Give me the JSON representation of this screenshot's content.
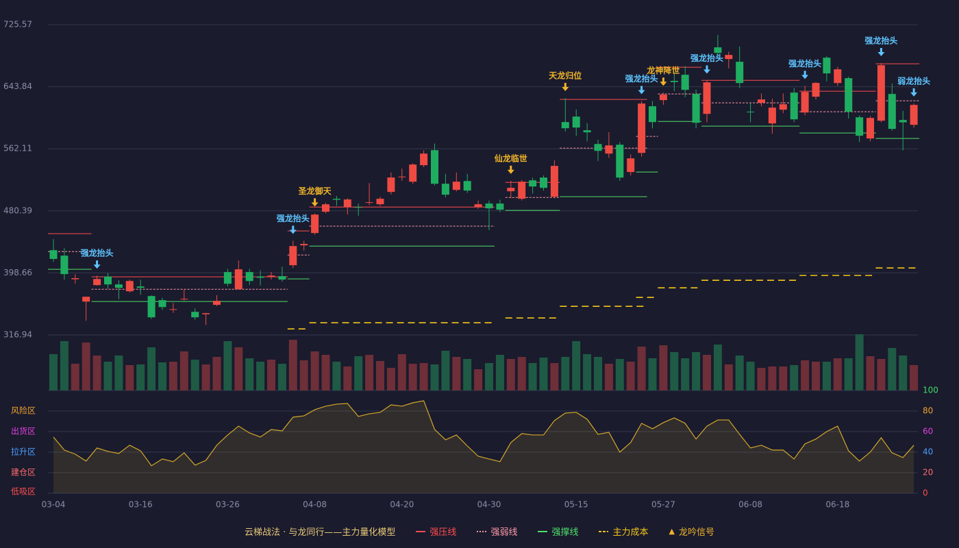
{
  "chart_data": {
    "type": "candlestick",
    "categories": [
      "03-04",
      null,
      null,
      null,
      null,
      null,
      null,
      null,
      "03-16",
      null,
      null,
      null,
      null,
      null,
      null,
      null,
      "03-26",
      null,
      null,
      null,
      null,
      null,
      null,
      null,
      "04-08",
      null,
      null,
      null,
      null,
      null,
      null,
      null,
      "04-20",
      null,
      null,
      null,
      null,
      null,
      null,
      null,
      "04-30",
      null,
      null,
      null,
      null,
      null,
      null,
      null,
      "05-15",
      null,
      null,
      null,
      null,
      null,
      null,
      null,
      "05-27",
      null,
      null,
      null,
      null,
      null,
      null,
      null,
      "06-08",
      null,
      null,
      null,
      null,
      null,
      null,
      null,
      "06-18",
      null,
      null,
      null,
      null,
      null,
      null,
      null
    ],
    "open": [
      428.6,
      421.4,
      390.3,
      360.9,
      382.6,
      393.9,
      383.5,
      374.5,
      380.8,
      368.2,
      362.8,
      350,
      363.7,
      347.4,
      344.2,
      356.6,
      399.8,
      377.2,
      399.8,
      393.9,
      393.3,
      394.4,
      408.8,
      435,
      451.2,
      479.2,
      496.3,
      485.4,
      485.4,
      491,
      489.1,
      505.3,
      525,
      518.8,
      540.5,
      560.3,
      516.1,
      508,
      519.7,
      485.4,
      490,
      490,
      506.2,
      496.3,
      520.6,
      524.2,
      499,
      597.3,
      604.5,
      586.5,
      568.4,
      555.8,
      567.5,
      531.5,
      556.7,
      618.1,
      626.2,
      651.6,
      659.6,
      634.3,
      608.1,
      695.7,
      680.3,
      676.7,
      611,
      622.6,
      595.5,
      613.6,
      636.1,
      609.9,
      630.7,
      682.1,
      648.7,
      655.1,
      603.6,
      575.7,
      599.1,
      634.3,
      600,
      593.7
    ],
    "high": [
      443.1,
      431.3,
      397,
      367.3,
      395.2,
      398.4,
      389,
      390,
      389.8,
      369,
      366,
      359,
      377,
      352,
      346,
      369.4,
      404,
      415,
      404,
      402,
      400,
      407,
      441,
      441,
      477,
      491,
      500,
      497,
      490,
      517,
      499,
      531,
      536,
      543,
      560,
      569,
      529,
      531,
      529,
      494,
      494,
      495,
      520,
      521,
      524,
      527,
      547,
      629,
      614,
      596,
      574,
      584,
      571,
      555,
      625,
      625,
      636,
      662,
      671,
      640,
      652,
      712,
      690,
      697,
      622,
      635,
      628,
      635,
      642,
      645,
      650,
      684,
      670,
      657,
      606,
      605,
      675,
      648,
      612,
      622
    ],
    "low": [
      413.3,
      389.8,
      384.4,
      335.7,
      382,
      378,
      364,
      373,
      370,
      338,
      350,
      346,
      362,
      337,
      330,
      355,
      381,
      377,
      383,
      382,
      390,
      387,
      405,
      428,
      449,
      477,
      487,
      475.5,
      474,
      488,
      487,
      502,
      520,
      516,
      538,
      514,
      498,
      506,
      504,
      483,
      455,
      479,
      497,
      494,
      503,
      507,
      497,
      585,
      579,
      572,
      546,
      550,
      520,
      527,
      552,
      589,
      620,
      638,
      630,
      589,
      597,
      683,
      668,
      642,
      597,
      618,
      582,
      609,
      597,
      606,
      627,
      651,
      645,
      602,
      571,
      572,
      597,
      586,
      560,
      590
    ],
    "close": [
      417.1,
      397.1,
      391.7,
      367.3,
      390.7,
      383.5,
      379,
      388,
      379,
      340.2,
      353.7,
      350.9,
      364.6,
      340.2,
      345.6,
      361.9,
      384.4,
      403.4,
      388,
      392.3,
      395.2,
      389.9,
      434,
      436.8,
      475.5,
      489,
      495,
      495.4,
      485,
      491.8,
      496.3,
      524.3,
      525.5,
      541.4,
      555.8,
      516.1,
      501.7,
      518.8,
      507.1,
      489.1,
      483.7,
      481.9,
      510.7,
      518.8,
      512.5,
      510.7,
      539.6,
      589.2,
      590.1,
      583.8,
      559.4,
      566.6,
      524.2,
      549.5,
      621.7,
      597.3,
      633.4,
      650,
      639.7,
      596.4,
      649.6,
      688.4,
      685.7,
      648.7,
      610.9,
      627.1,
      616.3,
      620.8,
      600.9,
      637,
      648.8,
      661.4,
      666.8,
      610.9,
      579.3,
      602.7,
      672.2,
      588.3,
      597,
      619.9
    ],
    "volume": [
      53,
      72,
      39,
      70,
      51,
      42,
      51,
      37,
      38,
      63,
      41,
      42,
      57,
      45,
      38,
      49,
      72,
      63,
      47,
      42,
      45,
      39,
      74,
      44,
      57,
      52,
      42,
      35,
      50,
      52,
      43,
      33,
      53,
      39,
      40,
      38,
      58,
      49,
      46,
      31,
      40,
      52,
      46,
      49,
      40,
      48,
      40,
      49,
      72,
      53,
      49,
      39,
      46,
      42,
      64,
      47,
      66,
      56,
      47,
      56,
      52,
      67,
      38,
      51,
      42,
      33,
      35,
      35,
      37,
      44,
      42,
      42,
      47,
      47,
      82,
      50,
      46,
      62,
      51,
      37
    ],
    "up_color": "#ef4b43",
    "down_color": "#1fae61",
    "ylim": [
      316.94,
      725.57
    ],
    "yticks": [
      316.94,
      398.66,
      480.39,
      562.11,
      643.84,
      725.57
    ],
    "grid": true,
    "levels": [
      {
        "name": "强压线",
        "color": "#ff4d4f",
        "style": "solid",
        "segments": [
          {
            "from": 0,
            "to": 3,
            "value": 450.3
          },
          {
            "from": 4,
            "to": 21,
            "value": 393.5
          },
          {
            "from": 22,
            "to": 23,
            "value": 453.9
          },
          {
            "from": 24,
            "to": 40,
            "value": 485.4
          },
          {
            "from": 42,
            "to": 46,
            "value": 517.9
          },
          {
            "from": 47,
            "to": 54,
            "value": 627.1
          },
          {
            "from": 56,
            "to": 59,
            "value": 669.5
          },
          {
            "from": 60,
            "to": 68,
            "value": 652.3
          },
          {
            "from": 69,
            "to": 75,
            "value": 638
          },
          {
            "from": 76,
            "to": 79,
            "value": 674
          }
        ]
      },
      {
        "name": "强弱线",
        "color": "#ff9aa8",
        "style": "dashed",
        "segments": [
          {
            "from": 0,
            "to": 3,
            "value": 426.8
          },
          {
            "from": 4,
            "to": 21,
            "value": 377.2
          },
          {
            "from": 22,
            "to": 23,
            "value": 422.3
          },
          {
            "from": 24,
            "to": 40,
            "value": 460.2
          },
          {
            "from": 42,
            "to": 46,
            "value": 498
          },
          {
            "from": 47,
            "to": 54,
            "value": 563
          },
          {
            "from": 54,
            "to": 55,
            "value": 578.4
          },
          {
            "from": 56,
            "to": 59,
            "value": 634.3
          },
          {
            "from": 60,
            "to": 68,
            "value": 622.6
          },
          {
            "from": 69,
            "to": 75,
            "value": 610.9
          },
          {
            "from": 76,
            "to": 79,
            "value": 625.3
          }
        ]
      },
      {
        "name": "强撑线",
        "color": "#4fe06a",
        "style": "solid",
        "segments": [
          {
            "from": 0,
            "to": 3,
            "value": 403.4
          },
          {
            "from": 4,
            "to": 21,
            "value": 361
          },
          {
            "from": 22,
            "to": 23,
            "value": 390.8
          },
          {
            "from": 24,
            "to": 40,
            "value": 434
          },
          {
            "from": 42,
            "to": 46,
            "value": 481
          },
          {
            "from": 47,
            "to": 54,
            "value": 499
          },
          {
            "from": 54,
            "to": 55,
            "value": 531.5
          },
          {
            "from": 56,
            "to": 59,
            "value": 598.2
          },
          {
            "from": 60,
            "to": 68,
            "value": 591.9
          },
          {
            "from": 69,
            "to": 75,
            "value": 582.9
          },
          {
            "from": 76,
            "to": 79,
            "value": 575.7
          }
        ]
      },
      {
        "name": "主力成本",
        "color": "#f5c518",
        "style": "longdash",
        "segments": [
          {
            "from": 22,
            "to": 23,
            "value": 324.9
          },
          {
            "from": 24,
            "to": 40,
            "value": 333
          },
          {
            "from": 42,
            "to": 46,
            "value": 339.3
          },
          {
            "from": 47,
            "to": 54,
            "value": 354.7
          },
          {
            "from": 54,
            "to": 55,
            "value": 366.4
          },
          {
            "from": 56,
            "to": 59,
            "value": 379
          },
          {
            "from": 60,
            "to": 68,
            "value": 388.9
          },
          {
            "from": 69,
            "to": 75,
            "value": 395.3
          },
          {
            "from": 76,
            "to": 79,
            "value": 405.2
          }
        ]
      }
    ],
    "signals": {
      "name": "龙吟信号",
      "color": "#f0b429",
      "items": [
        {
          "index": 4,
          "label": "强龙抬头",
          "color": "#5ec4ff"
        },
        {
          "index": 22,
          "label": "强龙抬头",
          "color": "#5ec4ff"
        },
        {
          "index": 24,
          "label": "圣龙御天",
          "color": "#f0b429"
        },
        {
          "index": 42,
          "label": "仙龙临世",
          "color": "#f0b429"
        },
        {
          "index": 47,
          "label": "天龙归位",
          "color": "#f0b429"
        },
        {
          "index": 54,
          "label": "强龙抬头",
          "color": "#5ec4ff"
        },
        {
          "index": 56,
          "label": "龙神降世",
          "color": "#f0b429"
        },
        {
          "index": 60,
          "label": "强龙抬头",
          "color": "#5ec4ff"
        },
        {
          "index": 69,
          "label": "强龙抬头",
          "color": "#5ec4ff"
        },
        {
          "index": 76,
          "label": "强龙抬头",
          "color": "#5ec4ff"
        },
        {
          "index": 79,
          "label": "弱龙抬头",
          "color": "#5ec4ff"
        }
      ]
    },
    "oscillator": {
      "color": "#d4a82a",
      "values": [
        54.7,
        42,
        38,
        31.3,
        44,
        40.7,
        38.7,
        46.7,
        41.3,
        26.7,
        33.3,
        30.7,
        39.3,
        27.3,
        32,
        46.7,
        56.7,
        65.3,
        58.7,
        54.7,
        62,
        60.7,
        74,
        75.3,
        81.3,
        84.7,
        86.7,
        87.3,
        74.7,
        77.3,
        78.7,
        86,
        84.7,
        88,
        90,
        62,
        52,
        56.7,
        46,
        36,
        33.3,
        30.7,
        49.3,
        58,
        56.7,
        56.7,
        70.7,
        78,
        78.7,
        72,
        57.3,
        59.3,
        40,
        49.3,
        68,
        62.7,
        68.7,
        73.3,
        68,
        52.7,
        65.3,
        71.3,
        71.3,
        57.3,
        44,
        46.7,
        42,
        42,
        33.3,
        48,
        52.7,
        60,
        65.3,
        41.3,
        31.3,
        40,
        54,
        39.3,
        34.7,
        46.7
      ],
      "ylim": [
        0,
        100
      ],
      "yticks": [
        0,
        20,
        40,
        60,
        80,
        100
      ],
      "ytick_colors": [
        "#ff4d4f",
        "#ff6b6b",
        "#4a9eff",
        "#e040e0",
        "#f0a030",
        "#3ddc6a"
      ],
      "zones": [
        {
          "label": "风险区",
          "value": 80,
          "color": "#f0a030"
        },
        {
          "label": "出货区",
          "value": 60,
          "color": "#e040e0"
        },
        {
          "label": "拉升区",
          "value": 40,
          "color": "#4a9eff"
        },
        {
          "label": "建仓区",
          "value": 20,
          "color": "#ff6b6b"
        },
        {
          "label": "低吸区",
          "value": 0,
          "color": "#ff4d4f"
        }
      ]
    },
    "model_label": "云梯战法 · 与龙同行——主力量化模型"
  }
}
